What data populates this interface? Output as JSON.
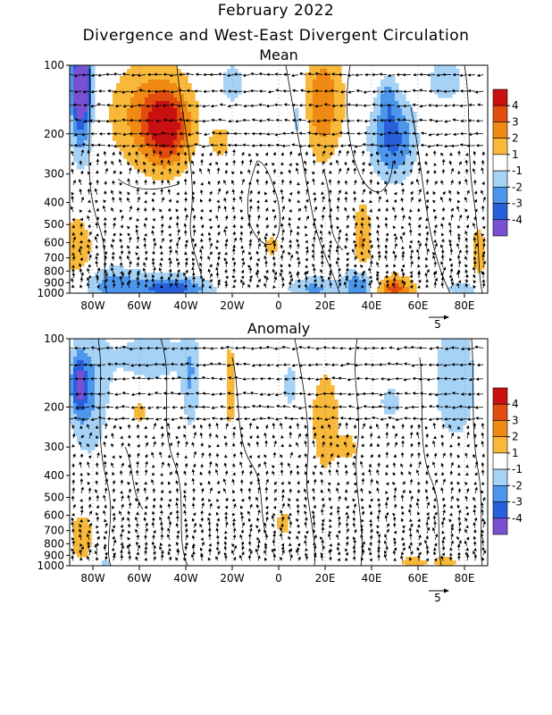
{
  "header": {
    "title": "February 2022",
    "subtitle": "Divergence and West-East Divergent Circulation"
  },
  "colors": {
    "bins": [
      "#7a50d2",
      "#2860dc",
      "#4c96ec",
      "#a6d2f6",
      "#ffffff",
      "#f8b83a",
      "#f08a12",
      "#e34c10",
      "#c81010"
    ],
    "contour": "#000000",
    "vector": "#000000"
  },
  "chart_data": [
    {
      "type": "heatmap",
      "title": "Mean",
      "x_ticks": [
        "80W",
        "60W",
        "40W",
        "20W",
        "0",
        "20E",
        "40E",
        "60E",
        "80E"
      ],
      "x_tick_values": [
        -80,
        -60,
        -40,
        -20,
        0,
        20,
        40,
        60,
        80
      ],
      "xlim": [
        -90,
        90
      ],
      "y_ticks": [
        "100",
        "200",
        "300",
        "400",
        "500",
        "600",
        "700",
        "800",
        "900",
        "1000"
      ],
      "y_tick_values": [
        100,
        200,
        300,
        400,
        500,
        600,
        700,
        800,
        900,
        1000
      ],
      "ylim": [
        1000,
        100
      ],
      "y_scale": "log",
      "colorbar_levels": [
        "-4",
        "-3",
        "-2",
        "-1",
        "1",
        "2",
        "3",
        "4"
      ],
      "reference_vector": "5",
      "blobs": [
        {
          "lon": -85,
          "p": 150,
          "rx": 5,
          "ry": 0.26,
          "v": -3.6
        },
        {
          "lon": -85,
          "p": 120,
          "rx": 4,
          "ry": 0.12,
          "v": -4.5
        },
        {
          "lon": -87,
          "p": 650,
          "rx": 7,
          "ry": 0.17,
          "v": 2.0
        },
        {
          "lon": -55,
          "p": 165,
          "rx": 18,
          "ry": 0.24,
          "v": 2.6
        },
        {
          "lon": -48,
          "p": 190,
          "rx": 9,
          "ry": 0.16,
          "v": 3.3
        },
        {
          "lon": -25,
          "p": 215,
          "rx": 5,
          "ry": 0.08,
          "v": 1.5
        },
        {
          "lon": -20,
          "p": 120,
          "rx": 7,
          "ry": 0.12,
          "v": -1.5
        },
        {
          "lon": -3,
          "p": 620,
          "rx": 3,
          "ry": 0.07,
          "v": 1.5
        },
        {
          "lon": 8,
          "p": 165,
          "rx": 4,
          "ry": 0.22,
          "v": -1.6
        },
        {
          "lon": 19,
          "p": 145,
          "rx": 9,
          "ry": 0.26,
          "v": 2.8
        },
        {
          "lon": 36,
          "p": 600,
          "rx": 4,
          "ry": 0.2,
          "v": 2.1
        },
        {
          "lon": 49,
          "p": 210,
          "rx": 10,
          "ry": 0.18,
          "v": -3.4
        },
        {
          "lon": 47,
          "p": 135,
          "rx": 4,
          "ry": 0.1,
          "v": -1.6
        },
        {
          "lon": 72,
          "p": 115,
          "rx": 10,
          "ry": 0.13,
          "v": -1.5
        },
        {
          "lon": 86,
          "p": 660,
          "rx": 4,
          "ry": 0.15,
          "v": 1.5
        },
        {
          "lon": -72,
          "p": 930,
          "rx": 16,
          "ry": 0.09,
          "v": -2.4
        },
        {
          "lon": -45,
          "p": 960,
          "rx": 16,
          "ry": 0.06,
          "v": -3.4
        },
        {
          "lon": 15,
          "p": 960,
          "rx": 12,
          "ry": 0.06,
          "v": -2.2
        },
        {
          "lon": 35,
          "p": 920,
          "rx": 6,
          "ry": 0.08,
          "v": -3.6
        },
        {
          "lon": 50,
          "p": 960,
          "rx": 8,
          "ry": 0.06,
          "v": 3.4
        },
        {
          "lon": 80,
          "p": 960,
          "rx": 10,
          "ry": 0.05,
          "v": -1.5
        }
      ]
    },
    {
      "type": "heatmap",
      "title": "Anomaly",
      "x_ticks": [
        "80W",
        "60W",
        "40W",
        "20W",
        "0",
        "20E",
        "40E",
        "60E",
        "80E"
      ],
      "x_tick_values": [
        -80,
        -60,
        -40,
        -20,
        0,
        20,
        40,
        60,
        80
      ],
      "xlim": [
        -90,
        90
      ],
      "y_ticks": [
        "100",
        "200",
        "300",
        "400",
        "500",
        "600",
        "700",
        "800",
        "900",
        "1000"
      ],
      "y_tick_values": [
        100,
        200,
        300,
        400,
        500,
        600,
        700,
        800,
        900,
        1000
      ],
      "ylim": [
        1000,
        100
      ],
      "y_scale": "log",
      "colorbar_levels": [
        "-4",
        "-3",
        "-2",
        "-1",
        "1",
        "2",
        "3",
        "4"
      ],
      "reference_vector": "5",
      "blobs": [
        {
          "lon": -82,
          "p": 170,
          "rx": 9,
          "ry": 0.3,
          "v": -2.2
        },
        {
          "lon": -86,
          "p": 160,
          "rx": 3,
          "ry": 0.12,
          "v": -3.2
        },
        {
          "lon": -55,
          "p": 120,
          "rx": 18,
          "ry": 0.13,
          "v": -1.6
        },
        {
          "lon": -38,
          "p": 160,
          "rx": 4,
          "ry": 0.22,
          "v": -1.8
        },
        {
          "lon": -21,
          "p": 160,
          "rx": 3,
          "ry": 0.24,
          "v": 1.6
        },
        {
          "lon": -60,
          "p": 210,
          "rx": 4,
          "ry": 0.06,
          "v": 1.5
        },
        {
          "lon": 5,
          "p": 160,
          "rx": 4,
          "ry": 0.12,
          "v": -1.5
        },
        {
          "lon": 20,
          "p": 230,
          "rx": 7,
          "ry": 0.28,
          "v": 1.7
        },
        {
          "lon": 30,
          "p": 300,
          "rx": 4,
          "ry": 0.06,
          "v": 1.6
        },
        {
          "lon": 48,
          "p": 190,
          "rx": 5,
          "ry": 0.08,
          "v": -1.6
        },
        {
          "lon": 76,
          "p": 150,
          "rx": 12,
          "ry": 0.35,
          "v": -1.6
        },
        {
          "lon": -85,
          "p": 740,
          "rx": 6,
          "ry": 0.14,
          "v": 1.6
        },
        {
          "lon": 2,
          "p": 650,
          "rx": 4,
          "ry": 0.07,
          "v": 1.5
        },
        {
          "lon": 88,
          "p": 105,
          "rx": 3,
          "ry": 0.12,
          "v": 1.5
        },
        {
          "lon": 58,
          "p": 975,
          "rx": 7,
          "ry": 0.04,
          "v": 1.5
        },
        {
          "lon": 72,
          "p": 960,
          "rx": 6,
          "ry": 0.04,
          "v": 1.5
        },
        {
          "lon": -75,
          "p": 980,
          "rx": 3,
          "ry": 0.03,
          "v": -1.5
        }
      ]
    }
  ]
}
